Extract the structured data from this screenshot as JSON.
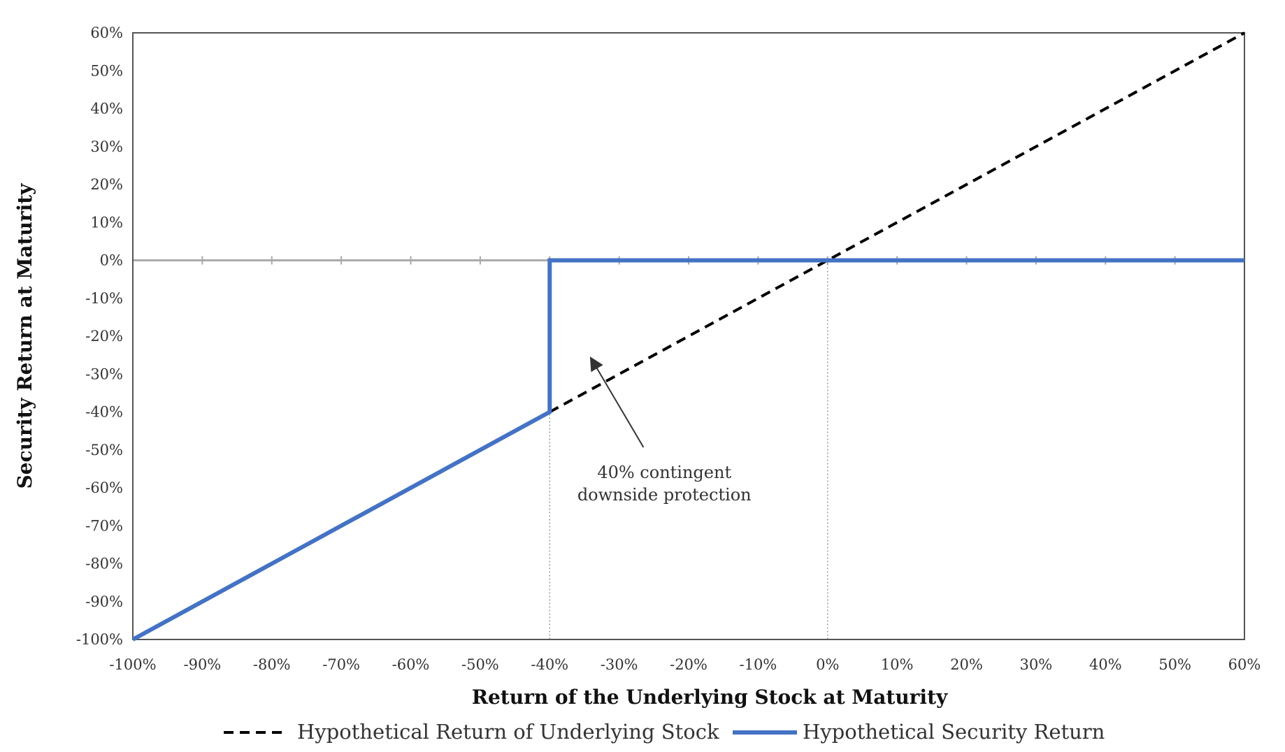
{
  "chart_data": {
    "type": "line",
    "title": "",
    "xlabel": "Return of the Underlying Stock at Maturity",
    "ylabel": "Security Return at Maturity",
    "xlim": [
      -100,
      60
    ],
    "ylim": [
      -100,
      60
    ],
    "x_ticks": [
      -100,
      -90,
      -80,
      -70,
      -60,
      -50,
      -40,
      -30,
      -20,
      -10,
      0,
      10,
      20,
      30,
      40,
      50,
      60
    ],
    "x_tick_labels": [
      "-100%",
      "-90%",
      "-80%",
      "-70%",
      "-60%",
      "-50%",
      "-40%",
      "-30%",
      "-20%",
      "-10%",
      "0%",
      "10%",
      "20%",
      "30%",
      "40%",
      "50%",
      "60%"
    ],
    "y_ticks": [
      60,
      50,
      40,
      30,
      20,
      10,
      0,
      -10,
      -20,
      -30,
      -40,
      -50,
      -60,
      -70,
      -80,
      -90,
      -100
    ],
    "y_tick_labels": [
      "60%",
      "50%",
      "40%",
      "30%",
      "20%",
      "10%",
      "0%",
      "-10%",
      "-20%",
      "-30%",
      "-40%",
      "-50%",
      "-60%",
      "-70%",
      "-80%",
      "-90%",
      "-100%"
    ],
    "reference_lines": {
      "vertical_dotted_x": [
        -40,
        0
      ],
      "horizontal_zero": 0
    },
    "grid": false,
    "legend_position": "bottom",
    "series": [
      {
        "name": "Hypothetical Return of Underlying Stock",
        "style": "dashed",
        "color": "#000000",
        "points": [
          [
            -40,
            -40
          ],
          [
            60,
            60
          ]
        ]
      },
      {
        "name": "Hypothetical Security Return",
        "style": "solid",
        "color": "#4472C4",
        "points": [
          [
            -100,
            -100
          ],
          [
            -40,
            -40
          ],
          [
            -40,
            0
          ],
          [
            60,
            0
          ]
        ]
      }
    ],
    "annotations": [
      {
        "lines": [
          "40% contingent",
          "downside protection"
        ],
        "arrow_to": [
          -34,
          -26
        ]
      }
    ]
  }
}
